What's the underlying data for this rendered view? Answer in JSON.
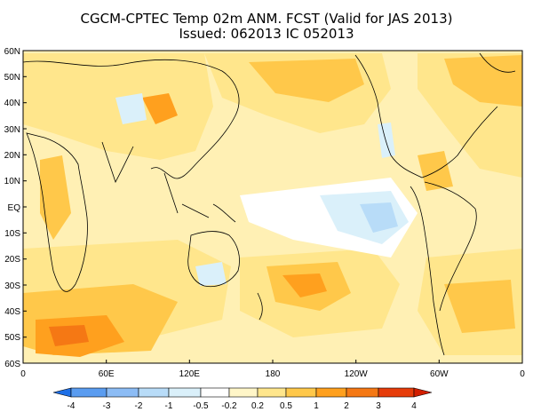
{
  "title_line1": "CGCM-CPTEC Temp 02m ANM. FCST  (Valid for JAS 2013)",
  "title_line2": "Issued:  062013 IC 052013",
  "lat_labels": [
    "60N",
    "50N",
    "40N",
    "30N",
    "20N",
    "10N",
    "EQ",
    "10S",
    "20S",
    "30S",
    "40S",
    "50S",
    "60S"
  ],
  "lon_labels": [
    "0",
    "60E",
    "120E",
    "180",
    "120W",
    "60W",
    "0"
  ],
  "colorbar": {
    "levels": [
      "-4",
      "-3",
      "-2",
      "-1",
      "-0.5",
      "-0.2",
      "0.2",
      "0.5",
      "1",
      "2",
      "3",
      "4"
    ],
    "colors": [
      "#1e6fe6",
      "#5a9cf0",
      "#8cbcf5",
      "#b8dcf8",
      "#daf0fa",
      "#ffffff",
      "#fff6c8",
      "#ffe68c",
      "#ffc84a",
      "#ffa01e",
      "#f57814",
      "#e63c0a",
      "#d21e00"
    ]
  },
  "fill_colors": {
    "ocean_base": "#fff0b4",
    "warm1": "#ffe68c",
    "warm2": "#ffc84a",
    "warm3": "#ffa01e",
    "warm4": "#f57814",
    "cool1": "#daf0fa",
    "cool2": "#b8dcf8",
    "white": "#ffffff"
  }
}
